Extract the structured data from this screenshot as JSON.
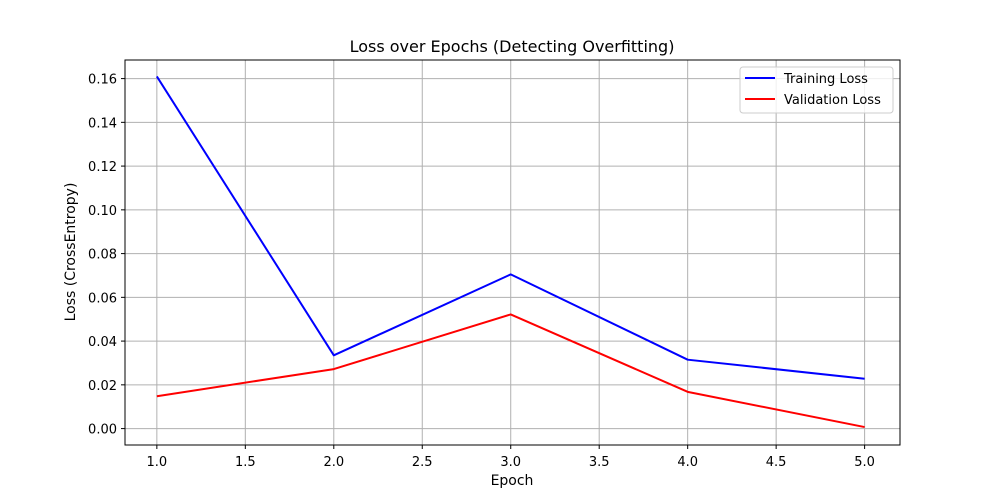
{
  "chart_data": {
    "type": "line",
    "title": "Loss over Epochs (Detecting Overfitting)",
    "xlabel": "Epoch",
    "ylabel": "Loss (CrossEntropy)",
    "xlim": [
      0.82,
      5.2
    ],
    "ylim": [
      -0.0075,
      0.1685
    ],
    "grid": true,
    "legend_position": "top-right",
    "x": [
      1.0,
      2.0,
      3.0,
      4.0,
      5.0
    ],
    "x_ticks": [
      1.0,
      1.5,
      2.0,
      2.5,
      3.0,
      3.5,
      4.0,
      4.5,
      5.0
    ],
    "x_tick_labels": [
      "1.0",
      "1.5",
      "2.0",
      "2.5",
      "3.0",
      "3.5",
      "4.0",
      "4.5",
      "5.0"
    ],
    "y_ticks": [
      0.0,
      0.02,
      0.04,
      0.06,
      0.08,
      0.1,
      0.12,
      0.14,
      0.16
    ],
    "y_tick_labels": [
      "0.00",
      "0.02",
      "0.04",
      "0.06",
      "0.08",
      "0.10",
      "0.12",
      "0.14",
      "0.16"
    ],
    "series": [
      {
        "name": "Training Loss",
        "color": "#0000ff",
        "values": [
          0.161,
          0.0335,
          0.0705,
          0.0315,
          0.0228
        ]
      },
      {
        "name": "Validation Loss",
        "color": "#ff0000",
        "values": [
          0.0148,
          0.0272,
          0.0522,
          0.0168,
          0.0007
        ]
      }
    ]
  }
}
